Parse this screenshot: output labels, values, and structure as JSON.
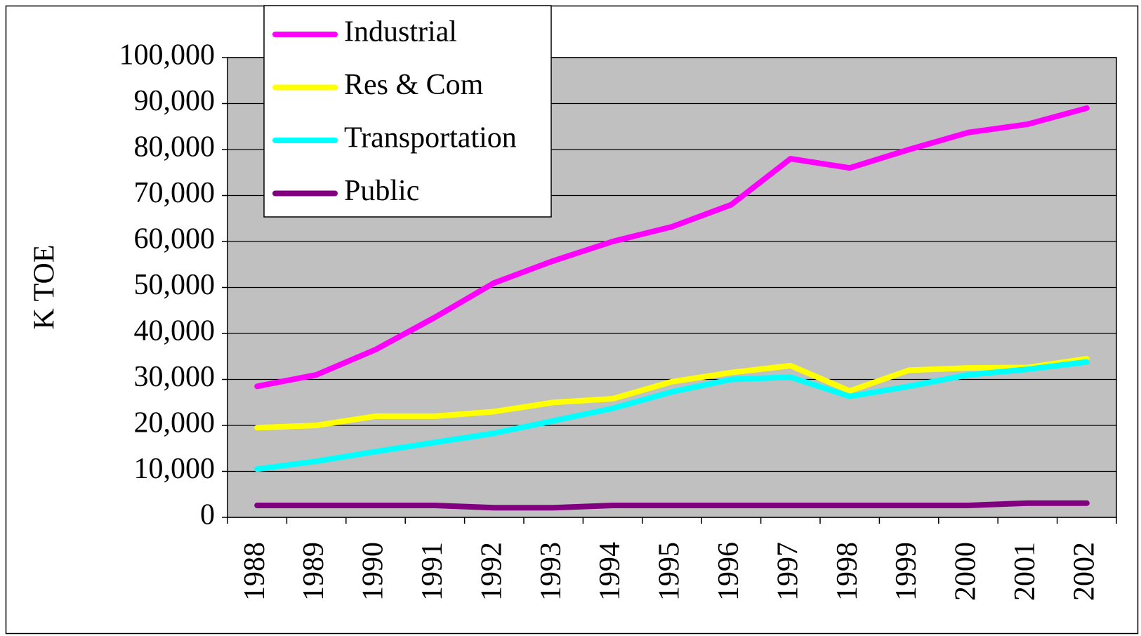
{
  "chart_data": {
    "type": "line",
    "y_label": "K TOE",
    "categories": [
      "1988",
      "1989",
      "1990",
      "1991",
      "1992",
      "1993",
      "1994",
      "1995",
      "1996",
      "1997",
      "1998",
      "1999",
      "2000",
      "2001",
      "2002"
    ],
    "series": [
      {
        "name": "Industrial",
        "color": "#ff00ff",
        "values": [
          28500,
          31000,
          36500,
          43500,
          51000,
          55800,
          60000,
          63200,
          68000,
          78000,
          76000,
          80000,
          83700,
          85500,
          89000
        ]
      },
      {
        "name": "Res & Com",
        "color": "#ffff00",
        "values": [
          19500,
          20000,
          22000,
          22000,
          23000,
          25000,
          25800,
          29500,
          31500,
          33000,
          27500,
          32000,
          32500,
          32600,
          34500
        ]
      },
      {
        "name": "Transportation",
        "color": "#00ffff",
        "values": [
          10500,
          12200,
          14300,
          16300,
          18300,
          21000,
          23700,
          27300,
          30000,
          30500,
          26300,
          28500,
          31000,
          32200,
          33800
        ]
      },
      {
        "name": "Public",
        "color": "#800080",
        "values": [
          2600,
          2600,
          2600,
          2600,
          2100,
          2100,
          2600,
          2600,
          2600,
          2600,
          2600,
          2600,
          2600,
          3100,
          3100
        ]
      }
    ],
    "ylim": [
      0,
      100000
    ],
    "yticks": [
      0,
      {
        "value": 10000,
        "label": "10,000"
      },
      {
        "value": 20000,
        "label": "20,000"
      },
      {
        "value": 30000,
        "label": "30,000"
      },
      {
        "value": 40000,
        "label": "40,000"
      },
      {
        "value": 50000,
        "label": "50,000"
      },
      {
        "value": 60000,
        "label": "60,000"
      },
      {
        "value": 70000,
        "label": "70,000"
      },
      {
        "value": 80000,
        "label": "80,000"
      },
      {
        "value": 90000,
        "label": "90,000"
      },
      {
        "value": 100000,
        "label": "100,000"
      }
    ],
    "grid": true,
    "legend": "upper left",
    "background": "#c0c0c0"
  }
}
